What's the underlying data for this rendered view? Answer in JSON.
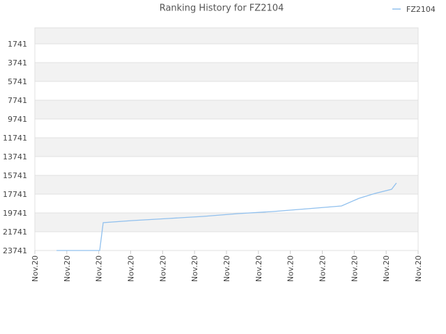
{
  "chart_data": {
    "type": "line",
    "title": "Ranking History for FZ2104",
    "y_inverted": true,
    "ylim": [
      37,
      23741
    ],
    "yticks": [
      1741,
      3741,
      5741,
      7741,
      9741,
      11741,
      13741,
      15741,
      17741,
      19741,
      21741,
      23741
    ],
    "xlim": [
      0,
      12
    ],
    "xticks": [
      {
        "value": 0,
        "label": "Nov.20"
      },
      {
        "value": 1,
        "label": "Nov.20"
      },
      {
        "value": 2,
        "label": "Nov.20"
      },
      {
        "value": 3,
        "label": "Nov.20"
      },
      {
        "value": 4,
        "label": "Nov.20"
      },
      {
        "value": 5,
        "label": "Nov.20"
      },
      {
        "value": 6,
        "label": "Nov.20"
      },
      {
        "value": 7,
        "label": "Nov.20"
      },
      {
        "value": 8,
        "label": "Nov.20"
      },
      {
        "value": 9,
        "label": "Nov.20"
      },
      {
        "value": 10,
        "label": "Nov.20"
      },
      {
        "value": 11,
        "label": "Nov.20"
      },
      {
        "value": 12,
        "label": "Nov.20"
      }
    ],
    "grid": true,
    "legend": "top-right",
    "series": [
      {
        "name": "FZ2104",
        "color": "#90c0ee",
        "x": [
          0.68,
          2.03,
          2.14,
          3.05,
          4.18,
          5.27,
          6.36,
          7.45,
          8.54,
          9.6,
          10.15,
          10.65,
          11.17,
          11.32
        ],
        "values": [
          23741,
          23741,
          20778,
          20556,
          20333,
          20111,
          19815,
          19593,
          19296,
          19000,
          18185,
          17667,
          17222,
          16556
        ]
      }
    ]
  }
}
